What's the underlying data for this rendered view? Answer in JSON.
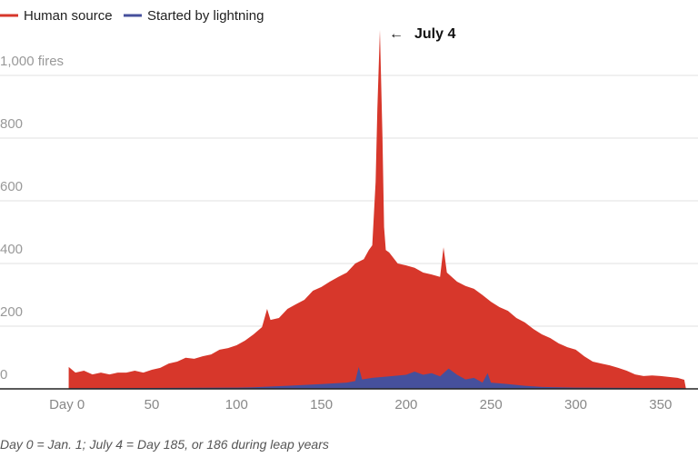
{
  "chart_data": {
    "type": "area",
    "title": "",
    "xlabel": "",
    "ylabel": "",
    "xlim": [
      0,
      365
    ],
    "ylim": [
      0,
      1150
    ],
    "grid": true,
    "legend_position": "top-left",
    "x_ticks": [
      {
        "value": 0,
        "label": "Day 0"
      },
      {
        "value": 50,
        "label": "50"
      },
      {
        "value": 100,
        "label": "100"
      },
      {
        "value": 150,
        "label": "150"
      },
      {
        "value": 200,
        "label": "200"
      },
      {
        "value": 250,
        "label": "250"
      },
      {
        "value": 300,
        "label": "300"
      },
      {
        "value": 350,
        "label": "350"
      }
    ],
    "y_ticks": [
      {
        "value": 0,
        "label": "0"
      },
      {
        "value": 200,
        "label": "200"
      },
      {
        "value": 400,
        "label": "400"
      },
      {
        "value": 600,
        "label": "600"
      },
      {
        "value": 800,
        "label": "800"
      },
      {
        "value": 1000,
        "label": "1,000 fires"
      }
    ],
    "series": [
      {
        "name": "Human source",
        "color": "#d7372b",
        "x": [
          1,
          5,
          10,
          15,
          20,
          25,
          30,
          35,
          40,
          45,
          50,
          55,
          60,
          65,
          70,
          75,
          80,
          85,
          90,
          95,
          100,
          105,
          110,
          115,
          118,
          120,
          125,
          130,
          135,
          140,
          145,
          150,
          155,
          160,
          165,
          170,
          175,
          178,
          180,
          182,
          183,
          184.5,
          186,
          187,
          188,
          190,
          195,
          200,
          205,
          210,
          215,
          220,
          222,
          224,
          230,
          235,
          240,
          245,
          250,
          255,
          260,
          265,
          270,
          275,
          280,
          285,
          290,
          295,
          300,
          305,
          310,
          315,
          320,
          325,
          330,
          335,
          340,
          345,
          350,
          355,
          360,
          364
        ],
        "values": [
          70,
          52,
          58,
          46,
          52,
          46,
          52,
          52,
          58,
          52,
          61,
          67,
          81,
          87,
          99,
          96,
          104,
          110,
          125,
          130,
          139,
          154,
          174,
          197,
          255,
          220,
          226,
          255,
          270,
          284,
          313,
          325,
          342,
          357,
          371,
          400,
          414,
          443,
          458,
          661,
          893,
          1145,
          806,
          516,
          443,
          435,
          400,
          394,
          386,
          371,
          365,
          357,
          452,
          371,
          342,
          328,
          319,
          299,
          278,
          261,
          249,
          226,
          212,
          191,
          174,
          162,
          145,
          133,
          125,
          104,
          87,
          81,
          75,
          67,
          58,
          46,
          41,
          43,
          41,
          38,
          35,
          29
        ]
      },
      {
        "name": "Started by lightning",
        "color": "#46509c",
        "x": [
          1,
          50,
          100,
          110,
          130,
          150,
          165,
          170,
          172,
          174,
          180,
          190,
          200,
          205,
          210,
          215,
          220,
          225,
          230,
          235,
          240,
          245,
          248,
          250,
          260,
          270,
          280,
          300,
          364
        ],
        "values": [
          2,
          3,
          4,
          5,
          10,
          15,
          20,
          25,
          70,
          30,
          35,
          40,
          45,
          55,
          45,
          50,
          40,
          65,
          45,
          30,
          35,
          20,
          50,
          20,
          15,
          10,
          6,
          4,
          2
        ]
      }
    ],
    "annotations": [
      {
        "x": 185,
        "y": 1145,
        "label": "July 4",
        "arrow": "←"
      }
    ],
    "footnote": "Day 0 = Jan. 1; July 4 = Day 185, or 186 during leap years"
  }
}
